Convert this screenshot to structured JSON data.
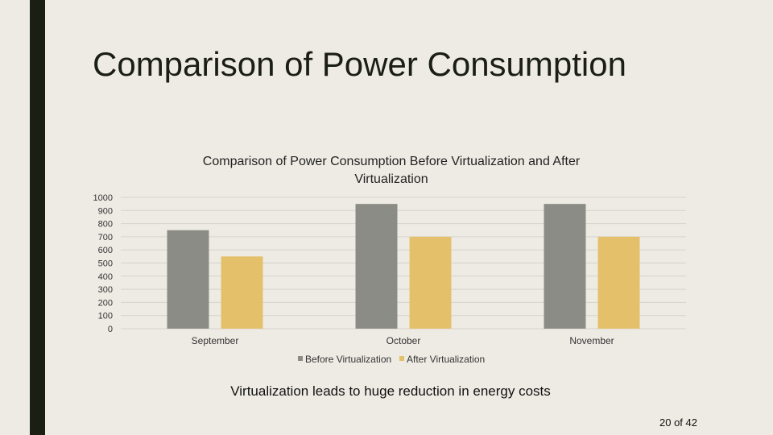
{
  "slide": {
    "title": "Comparison of Power Consumption",
    "caption": "Virtualization leads to huge reduction in energy costs",
    "page_number": "20 of 42"
  },
  "colors": {
    "before": "#8c8c86",
    "after": "#e5c06b",
    "grid": "#d6d3cc",
    "text": "#333333",
    "dark_bar": "#1b1e13"
  },
  "chart_data": {
    "type": "bar",
    "title": "Comparison of Power Consumption Before Virtualization and After Virtualization",
    "title_lines": [
      "Comparison of Power Consumption Before Virtualization and After",
      "Virtualization"
    ],
    "categories": [
      "September",
      "October",
      "November"
    ],
    "series": [
      {
        "name": "Before Virtualization",
        "values": [
          750,
          950,
          950
        ]
      },
      {
        "name": "After Virtualization",
        "values": [
          550,
          700,
          700
        ]
      }
    ],
    "yticks": [
      0,
      100,
      200,
      300,
      400,
      500,
      600,
      700,
      800,
      900,
      1000
    ],
    "ylim": [
      0,
      1000
    ],
    "grid": true,
    "legend": "bottom",
    "xlabel": "",
    "ylabel": ""
  }
}
